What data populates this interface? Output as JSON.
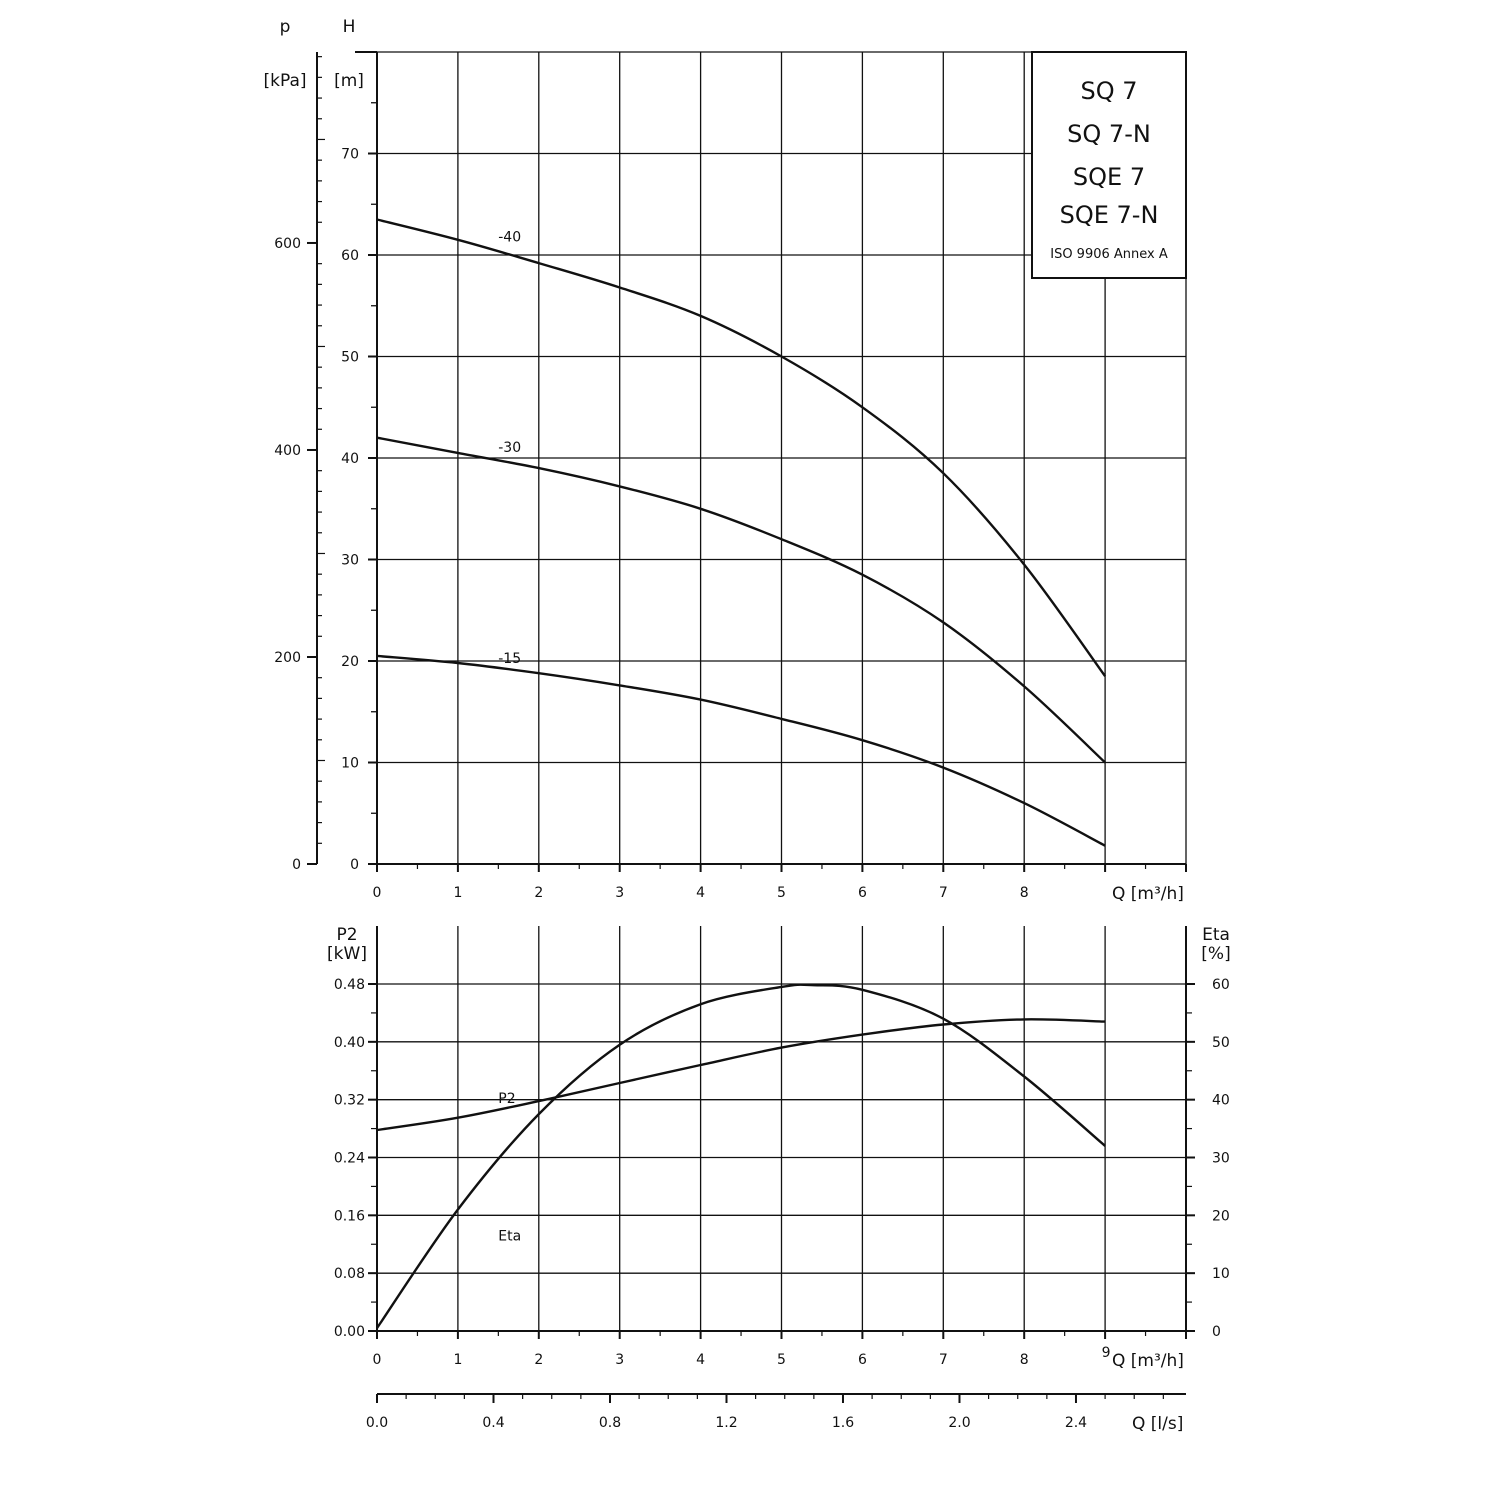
{
  "legend": {
    "titles": [
      "SQ 7",
      "SQ 7-N",
      "SQE 7",
      "SQE 7-N"
    ],
    "standard": "ISO 9906 Annex A"
  },
  "chart_data": [
    {
      "type": "line",
      "name": "head",
      "x_axis": {
        "label": "Q [m³/h]",
        "range": [
          0,
          10
        ],
        "ticks": [
          0,
          1,
          2,
          3,
          4,
          5,
          6,
          7,
          8
        ]
      },
      "y_axis_left": {
        "label": [
          "H",
          "[m]"
        ],
        "range": [
          0,
          80
        ],
        "ticks": [
          0,
          10,
          20,
          30,
          40,
          50,
          60,
          70
        ]
      },
      "y_axis_outer": {
        "label": [
          "p",
          "[kPa]"
        ],
        "range": [
          0,
          784.5
        ],
        "ticks": [
          0,
          200,
          400,
          600
        ]
      },
      "grid": true,
      "series": [
        {
          "name": "-40",
          "label_at": [
            1.4,
            61.8
          ],
          "x": [
            0,
            1,
            2,
            3,
            4,
            5,
            6,
            7,
            8,
            9
          ],
          "y": [
            63.5,
            61.5,
            59.2,
            56.8,
            54.0,
            50.0,
            45.0,
            38.5,
            29.5,
            18.5
          ]
        },
        {
          "name": "-30",
          "label_at": [
            1.4,
            41.1
          ],
          "x": [
            0,
            1,
            2,
            3,
            4,
            5,
            6,
            7,
            8,
            9
          ],
          "y": [
            42.0,
            40.5,
            39.0,
            37.2,
            35.0,
            32.0,
            28.5,
            23.8,
            17.5,
            10.0
          ]
        },
        {
          "name": "-15",
          "label_at": [
            1.4,
            20.3
          ],
          "x": [
            0,
            1,
            2,
            3,
            4,
            5,
            6,
            7,
            8,
            9
          ],
          "y": [
            20.5,
            19.8,
            18.8,
            17.6,
            16.2,
            14.3,
            12.2,
            9.5,
            6.0,
            1.8
          ]
        }
      ]
    },
    {
      "type": "line",
      "name": "power-efficiency",
      "x_axis": {
        "label": "Q [m³/h]",
        "range": [
          0,
          10
        ],
        "ticks": [
          0,
          1,
          2,
          3,
          4,
          5,
          6,
          7,
          8,
          9
        ]
      },
      "x_axis_secondary": {
        "label": "Q [l/s]",
        "range": [
          0,
          2.778
        ],
        "ticks": [
          0.0,
          0.4,
          0.8,
          1.2,
          1.6,
          2.0,
          2.4
        ]
      },
      "y_axis_left": {
        "label": [
          "P2",
          "[kW]"
        ],
        "range": [
          0,
          0.48
        ],
        "ticks": [
          0.0,
          0.08,
          0.16,
          0.24,
          0.32,
          0.4,
          0.48
        ]
      },
      "y_axis_right": {
        "label": [
          "Eta",
          "[%]"
        ],
        "range": [
          0,
          60
        ],
        "ticks": [
          0,
          10,
          20,
          30,
          40,
          50,
          60
        ]
      },
      "grid": true,
      "series": [
        {
          "name": "P2",
          "axis": "left",
          "label_at": [
            1.4,
            0.322
          ],
          "x": [
            0,
            1,
            2,
            3,
            4,
            5,
            6,
            7,
            8,
            9
          ],
          "y": [
            0.278,
            0.295,
            0.318,
            0.343,
            0.368,
            0.392,
            0.41,
            0.424,
            0.431,
            0.428
          ]
        },
        {
          "name": "Eta",
          "axis": "right",
          "label_at": [
            1.4,
            16.5
          ],
          "x": [
            0,
            1,
            2,
            3,
            4,
            5,
            5.4,
            6,
            7,
            8,
            9
          ],
          "y": [
            0.5,
            21,
            37.5,
            49.5,
            56.5,
            59.5,
            59.8,
            59,
            54,
            44,
            32
          ]
        }
      ]
    }
  ]
}
